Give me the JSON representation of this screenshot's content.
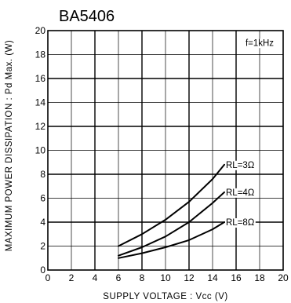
{
  "chart_data": {
    "type": "line",
    "title": "BA5406",
    "xlabel": "SUPPLY  VOLTAGE : Vcc  (V)",
    "ylabel": "MAXIMUM  POWER  DISSIPATION : Pd  Max.  (W)",
    "xlim": [
      0,
      20
    ],
    "ylim": [
      0,
      20
    ],
    "xticks": [
      "0",
      "2",
      "4",
      "6",
      "8",
      "10",
      "12",
      "14",
      "16",
      "18",
      "20"
    ],
    "yticks": [
      "0",
      "2",
      "4",
      "6",
      "8",
      "10",
      "12",
      "14",
      "16",
      "18",
      "20"
    ],
    "grid": true,
    "annotation": "f=1kHz",
    "series": [
      {
        "name": "RL=3Ω",
        "x": [
          6,
          8,
          10,
          12,
          14,
          15
        ],
        "y": [
          2.0,
          3.0,
          4.2,
          5.7,
          7.6,
          8.8
        ]
      },
      {
        "name": "RL=4Ω",
        "x": [
          6,
          8,
          10,
          12,
          14,
          15
        ],
        "y": [
          1.2,
          1.9,
          2.8,
          4.0,
          5.6,
          6.5
        ]
      },
      {
        "name": "RL=8Ω",
        "x": [
          6,
          8,
          10,
          12,
          14,
          15
        ],
        "y": [
          1.0,
          1.4,
          1.9,
          2.5,
          3.4,
          4.0
        ]
      }
    ]
  }
}
